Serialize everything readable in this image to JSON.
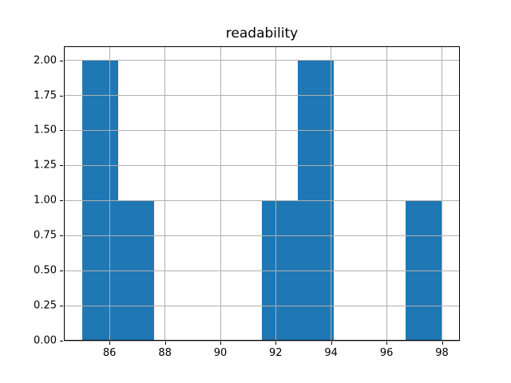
{
  "chart_data": {
    "type": "bar",
    "subtype": "histogram",
    "title": "readability",
    "xlabel": "",
    "ylabel": "",
    "bin_edges": [
      85.0,
      86.3,
      87.6,
      88.9,
      90.2,
      91.5,
      92.8,
      94.1,
      95.4,
      96.7,
      98.0
    ],
    "counts": [
      2,
      1,
      0,
      0,
      0,
      1,
      2,
      0,
      0,
      1
    ],
    "xticks": [
      86,
      88,
      90,
      92,
      94,
      96,
      98
    ],
    "xtick_labels": [
      "86",
      "88",
      "90",
      "92",
      "94",
      "96",
      "98"
    ],
    "yticks": [
      0.0,
      0.25,
      0.5,
      0.75,
      1.0,
      1.25,
      1.5,
      1.75,
      2.0
    ],
    "ytick_labels": [
      "0.00",
      "0.25",
      "0.50",
      "0.75",
      "1.00",
      "1.25",
      "1.50",
      "1.75",
      "2.00"
    ],
    "xlim": [
      84.35,
      98.65
    ],
    "ylim": [
      0,
      2.1
    ],
    "grid": true,
    "legend": false,
    "bar_color": "#1f77b4",
    "grid_color": "#b0b0b0",
    "spine_color": "#000000",
    "text_color": "#000000",
    "background_color": "#ffffff"
  }
}
